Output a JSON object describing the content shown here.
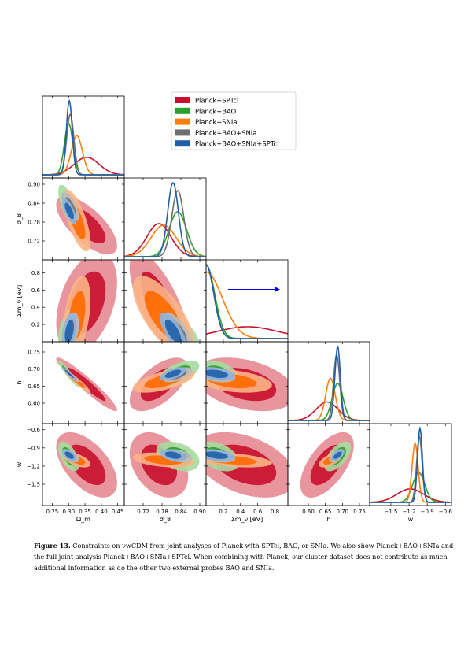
{
  "chart_data": {
    "type": "corner",
    "parameters": [
      {
        "key": "om",
        "label": "Ω_m",
        "range": [
          0.22,
          0.47
        ],
        "ticks": [
          "0.25",
          "0.30",
          "0.35",
          "0.40",
          "0.45"
        ],
        "tick_values": [
          0.25,
          0.3,
          0.35,
          0.4,
          0.45
        ]
      },
      {
        "key": "s8",
        "label": "σ_8",
        "range": [
          0.66,
          0.92
        ],
        "ticks": [
          "0.72",
          "0.78",
          "0.84",
          "0.90"
        ],
        "tick_values": [
          0.72,
          0.78,
          0.84,
          0.9
        ]
      },
      {
        "key": "mnu",
        "label": "Σm_ν [eV]",
        "range": [
          0.0,
          0.95
        ],
        "ticks": [
          "0.2",
          "0.4",
          "0.6",
          "0.8"
        ],
        "tick_values": [
          0.2,
          0.4,
          0.6,
          0.8
        ]
      },
      {
        "key": "h",
        "label": "h",
        "range": [
          0.54,
          0.78
        ],
        "ticks": [
          "0.60",
          "0.65",
          "0.70",
          "0.75"
        ],
        "tick_values": [
          0.6,
          0.65,
          0.7,
          0.75
        ]
      },
      {
        "key": "w",
        "label": "w",
        "range": [
          -1.85,
          -0.5
        ],
        "ticks": [
          "−1.5",
          "−1.2",
          "−0.9",
          "−0.6"
        ],
        "tick_values": [
          -1.5,
          -1.2,
          -0.9,
          -0.6
        ]
      }
    ],
    "legend_position": "top-right",
    "series": [
      {
        "name": "Planck+SPTcl",
        "color": "#c8102e",
        "fill_inner": "#c8102e",
        "fill_outer": "#e68a92",
        "mean": [
          0.355,
          0.77,
          0.45,
          0.655,
          -1.18
        ],
        "sd": [
          0.038,
          0.038,
          0.24,
          0.032,
          0.22
        ]
      },
      {
        "name": "Planck+BAO",
        "color": "#2ca02c",
        "fill_inner": "#2ca02c",
        "fill_outer": "#a6dba0",
        "mean": [
          0.3,
          0.83,
          0.14,
          0.686,
          -1.04
        ],
        "sd": [
          0.013,
          0.028,
          0.1,
          0.016,
          0.1
        ]
      },
      {
        "name": "Planck+SNIa",
        "color": "#ff7f0e",
        "fill_inner": "#ff6a00",
        "fill_outer": "#fbb586",
        "mean": [
          0.325,
          0.785,
          0.3,
          0.665,
          -1.1
        ],
        "sd": [
          0.017,
          0.04,
          0.19,
          0.014,
          0.05
        ]
      },
      {
        "name": "Planck+BAO+SNIa",
        "color": "#6e6e6e",
        "fill_inner": "#6e6e6e",
        "fill_outer": "#bdbdbd",
        "mean": [
          0.305,
          0.83,
          0.12,
          0.683,
          -1.03
        ],
        "sd": [
          0.011,
          0.019,
          0.09,
          0.009,
          0.045
        ]
      },
      {
        "name": "Planck+BAO+SNIa+SPTcl",
        "color": "#1f5fa8",
        "fill_inner": "#1f5fa8",
        "fill_outer": "#8fb3dc",
        "mean": [
          0.302,
          0.815,
          0.12,
          0.686,
          -1.02
        ],
        "sd": [
          0.009,
          0.017,
          0.09,
          0.008,
          0.04
        ]
      }
    ],
    "mnu_upper_limit_arrow": {
      "from": 0.0,
      "to": 0.95,
      "at": 0.6,
      "color": "#0000ee"
    }
  },
  "caption": {
    "label": "Figure 13.",
    "text": "Constraints on νwCDM from joint analyses of Planck with SPTcl, BAO, or SNIa. We also show Planck+BAO+SNIa and the full joint analysis Planck+BAO+SNIa+SPTcl. When combining with Planck, our cluster dataset does not contribute as much additional information as do the other two external probes BAO and SNIa."
  }
}
